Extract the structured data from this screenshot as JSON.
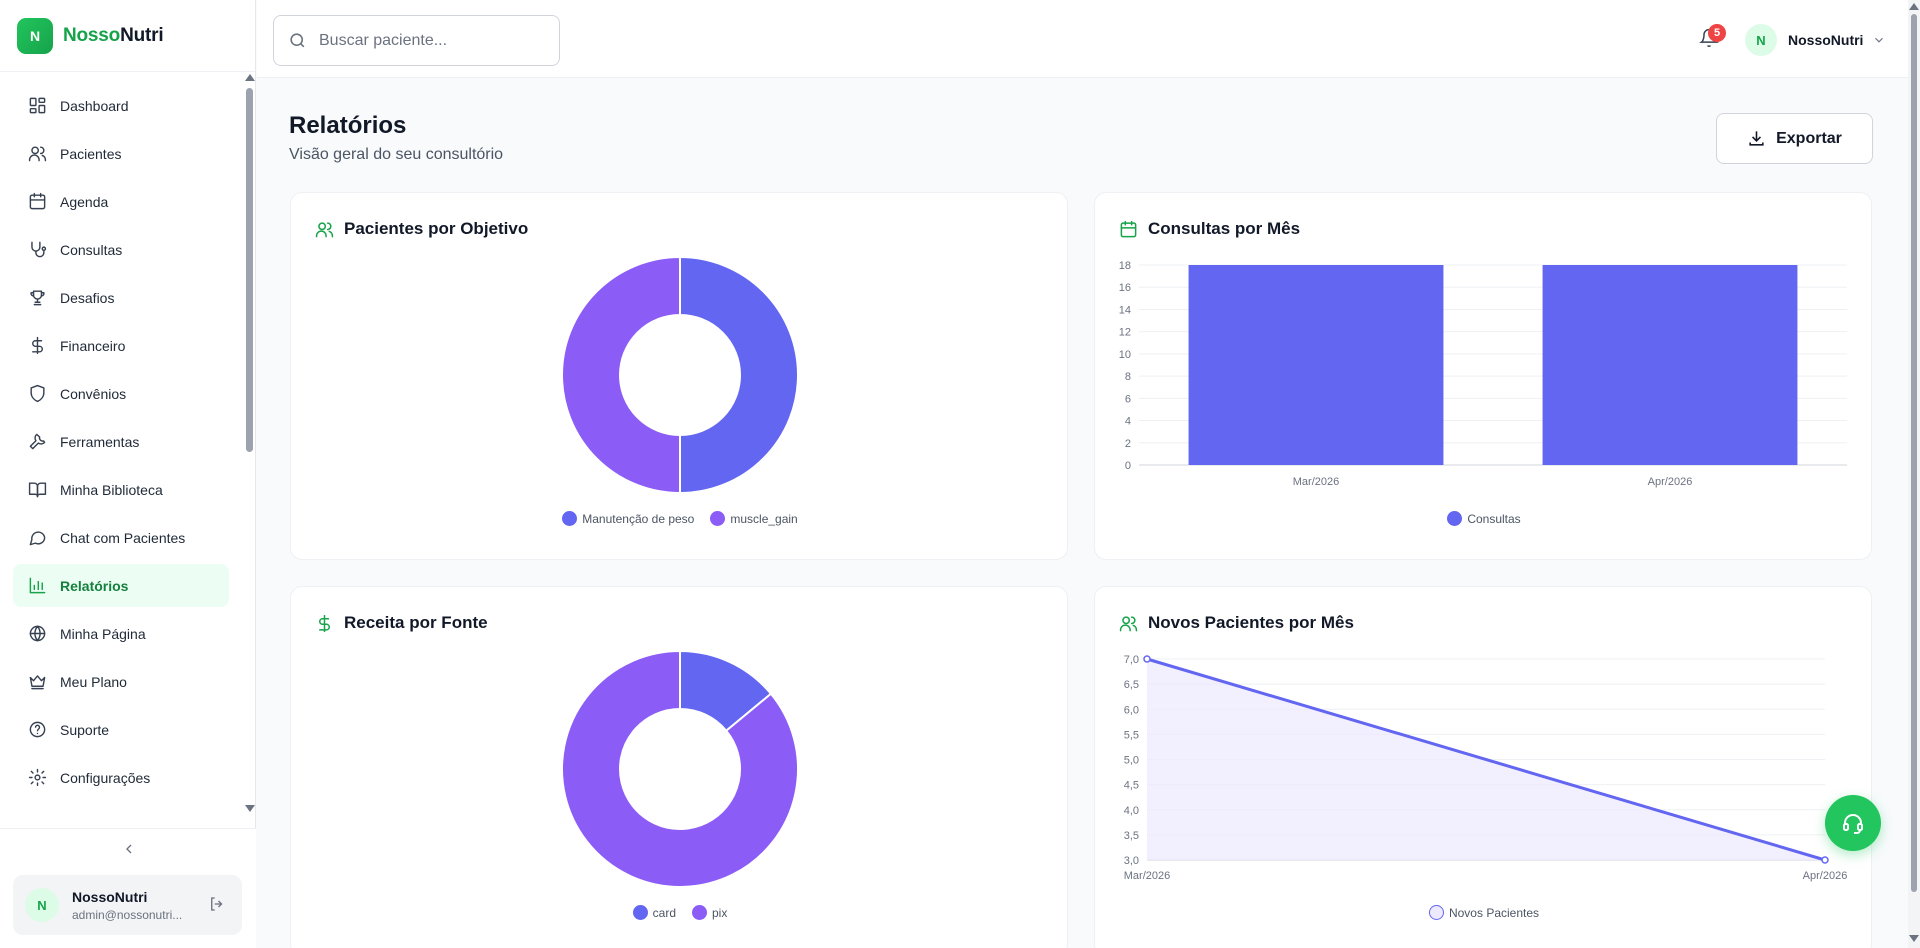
{
  "brand": {
    "logo_letter": "N",
    "name_part1": "Nosso",
    "name_part2": "Nutri"
  },
  "sidebar": {
    "items": [
      {
        "label": "Dashboard",
        "icon": "dashboard-icon"
      },
      {
        "label": "Pacientes",
        "icon": "users-icon"
      },
      {
        "label": "Agenda",
        "icon": "calendar-icon"
      },
      {
        "label": "Consultas",
        "icon": "stethoscope-icon"
      },
      {
        "label": "Desafios",
        "icon": "trophy-icon"
      },
      {
        "label": "Financeiro",
        "icon": "dollar-icon"
      },
      {
        "label": "Convênios",
        "icon": "shield-icon"
      },
      {
        "label": "Ferramentas",
        "icon": "wrench-icon"
      },
      {
        "label": "Minha Biblioteca",
        "icon": "book-icon"
      },
      {
        "label": "Chat com Pacientes",
        "icon": "chat-icon"
      },
      {
        "label": "Relatórios",
        "icon": "bar-chart-icon",
        "active": true
      },
      {
        "label": "Minha Página",
        "icon": "globe-icon"
      },
      {
        "label": "Meu Plano",
        "icon": "crown-icon"
      },
      {
        "label": "Suporte",
        "icon": "help-icon"
      },
      {
        "label": "Configurações",
        "icon": "gear-icon"
      }
    ],
    "user": {
      "initial": "N",
      "name": "NossoNutri",
      "email": "admin@nossonutri..."
    }
  },
  "header": {
    "search_placeholder": "Buscar paciente...",
    "notification_count": "5",
    "profile_initial": "N",
    "profile_name": "NossoNutri"
  },
  "page": {
    "title": "Relatórios",
    "subtitle": "Visão geral do seu consultório",
    "export_label": "Exportar"
  },
  "colors": {
    "primary": "#16a34a",
    "indigo": "#6366f1",
    "violet": "#8b5cf6"
  },
  "chart_data": [
    {
      "id": "objetivo",
      "type": "pie",
      "title": "Pacientes por Objetivo",
      "labels": [
        "Manutenção de peso",
        "muscle_gain"
      ],
      "values": [
        50,
        50
      ],
      "colors": [
        "#6366f1",
        "#8b5cf6"
      ],
      "legend": "bottom"
    },
    {
      "id": "consultas",
      "type": "bar",
      "title": "Consultas por Mês",
      "categories": [
        "Mar/2026",
        "Apr/2026"
      ],
      "series": [
        {
          "name": "Consultas",
          "values": [
            18,
            18
          ]
        }
      ],
      "ylim": [
        0,
        18
      ],
      "yticks": [
        "0",
        "2",
        "4",
        "6",
        "8",
        "10",
        "12",
        "14",
        "16",
        "18"
      ],
      "color": "#6366f1",
      "grid": true,
      "legend": "bottom"
    },
    {
      "id": "receita",
      "type": "pie",
      "title": "Receita por Fonte",
      "labels": [
        "card",
        "pix"
      ],
      "values": [
        14,
        86
      ],
      "colors": [
        "#6366f1",
        "#8b5cf6"
      ],
      "legend": "bottom"
    },
    {
      "id": "novos",
      "type": "area",
      "title": "Novos Pacientes por Mês",
      "categories": [
        "Mar/2026",
        "Apr/2026"
      ],
      "series": [
        {
          "name": "Novos Pacientes",
          "values": [
            7,
            3
          ]
        }
      ],
      "ylim": [
        3,
        7
      ],
      "yticks": [
        "3,0",
        "3,5",
        "4,0",
        "4,5",
        "5,0",
        "5,5",
        "6,0",
        "6,5",
        "7,0"
      ],
      "color": "#6366f1",
      "grid": true,
      "legend": "bottom"
    }
  ]
}
